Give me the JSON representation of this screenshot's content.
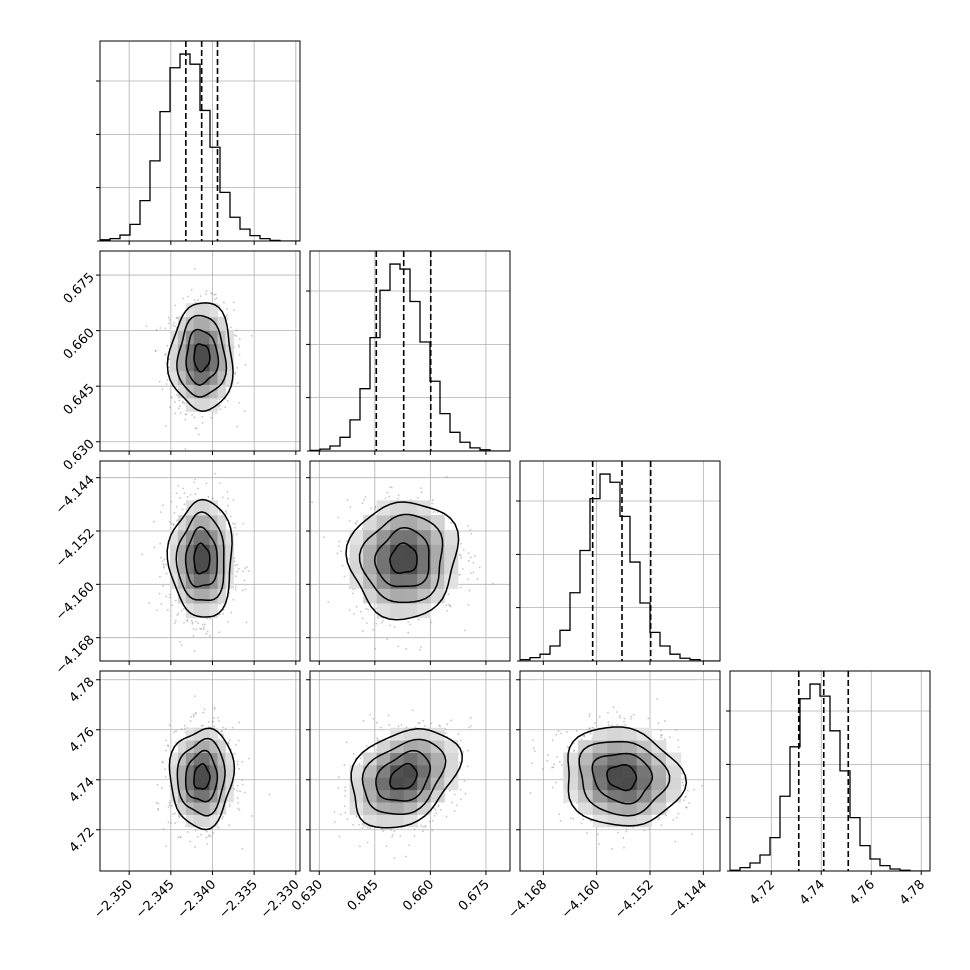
{
  "chart_data": {
    "type": "corner",
    "title": "",
    "grid": true,
    "parameters": [
      {
        "label": "",
        "range": [
          -2.3535,
          -2.3295
        ],
        "ticks": [
          -2.35,
          -2.345,
          -2.34,
          -2.335,
          -2.33
        ],
        "tick_labels": [
          "−2.350",
          "−2.345",
          "−2.340",
          "−2.335",
          "−2.330"
        ],
        "median": -2.3413,
        "q16": -2.3432,
        "q84": -2.3394
      },
      {
        "label": "",
        "range": [
          0.6275,
          0.6815
        ],
        "ticks": [
          0.63,
          0.645,
          0.66,
          0.675
        ],
        "tick_labels": [
          "0.630",
          "0.645",
          "0.660",
          "0.675"
        ],
        "median": 0.6528,
        "q16": 0.6454,
        "q84": 0.6601
      },
      {
        "label": "",
        "range": [
          -4.1715,
          -4.1415
        ],
        "ticks": [
          -4.168,
          -4.16,
          -4.152,
          -4.144
        ],
        "tick_labels": [
          "−4.168",
          "−4.160",
          "−4.152",
          "−4.144"
        ],
        "median": -4.1562,
        "q16": -4.1606,
        "q84": -4.1519
      },
      {
        "label": "",
        "range": [
          4.7035,
          4.7835
        ],
        "ticks": [
          4.72,
          4.74,
          4.76,
          4.78
        ],
        "tick_labels": [
          "4.72",
          "4.74",
          "4.76",
          "4.78"
        ],
        "median": 4.741,
        "q16": 4.731,
        "q84": 4.7508
      }
    ],
    "histograms": [
      [
        2,
        4,
        10,
        28,
        68,
        135,
        218,
        292,
        315,
        298,
        220,
        158,
        82,
        40,
        20,
        9,
        4,
        1,
        0,
        0
      ],
      [
        1,
        3,
        8,
        22,
        50,
        100,
        182,
        258,
        300,
        292,
        240,
        175,
        112,
        60,
        30,
        14,
        5,
        2,
        0,
        0
      ],
      [
        2,
        5,
        10,
        22,
        45,
        100,
        162,
        238,
        274,
        262,
        212,
        145,
        85,
        42,
        22,
        10,
        4,
        2,
        0,
        0
      ],
      [
        1,
        5,
        12,
        24,
        50,
        112,
        186,
        258,
        280,
        262,
        210,
        150,
        80,
        38,
        18,
        8,
        3,
        1,
        0,
        0
      ]
    ],
    "sigmas": [
      0.0019,
      0.0073,
      0.0044,
      0.0099
    ],
    "correlations": {
      "1-0": 0.0,
      "2-0": 0.0,
      "2-1": 0.05,
      "3-0": 0.05,
      "3-1": 0.3,
      "3-2": -0.1
    },
    "quantile_lines": [
      0.16,
      0.5,
      0.84
    ],
    "contour_levels_sigma": [
      0.5,
      1.0,
      1.5,
      2.0
    ]
  }
}
